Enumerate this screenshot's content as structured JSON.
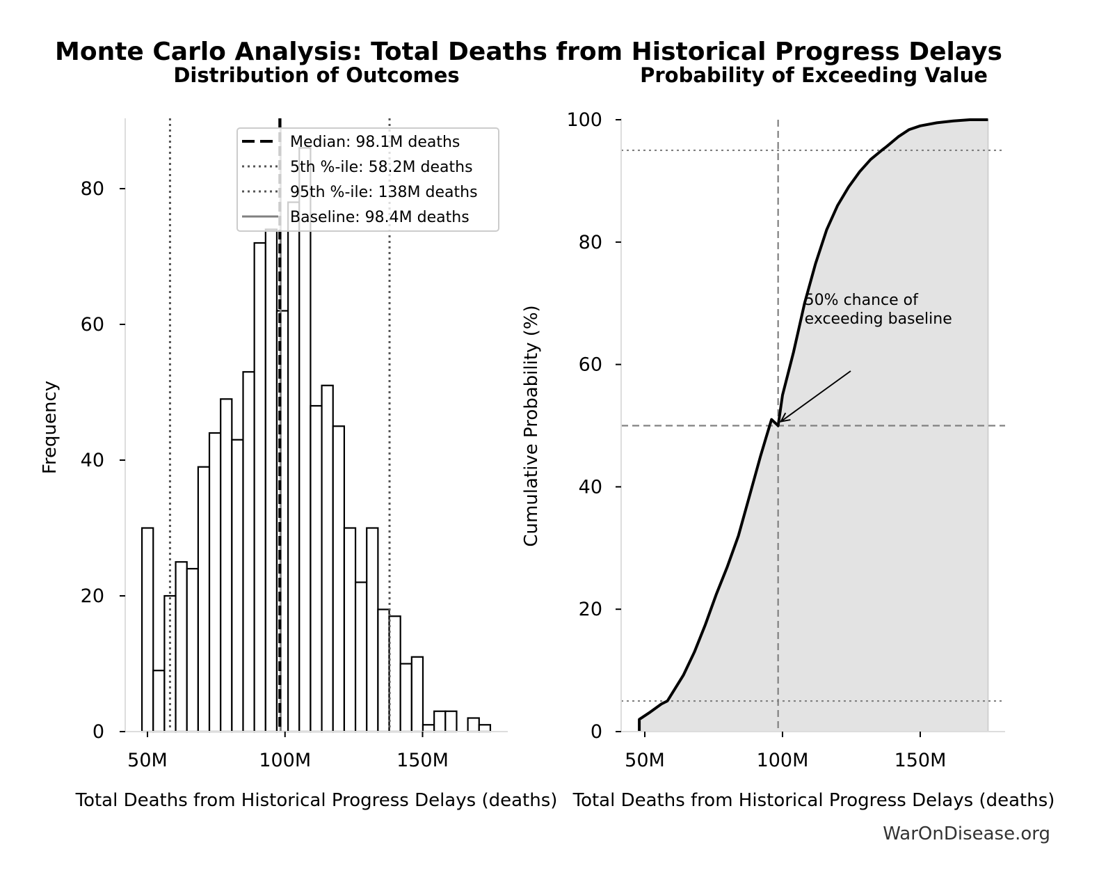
{
  "suptitle": "Monte Carlo Analysis: Total Deaths from Historical Progress Delays",
  "watermark": "WarOnDisease.org",
  "chart_data": [
    {
      "type": "bar",
      "subtype": "histogram",
      "title": "Distribution of Outcomes",
      "xlabel": "Total Deaths from Historical Progress Delays (deaths)",
      "ylabel": "Frequency",
      "xlim": [
        44,
        182
      ],
      "ylim": [
        0,
        90
      ],
      "x_unit": "M",
      "xticks": [
        50,
        100,
        150
      ],
      "xtick_labels": [
        "50M",
        "100M",
        "150M"
      ],
      "yticks": [
        0,
        20,
        40,
        60,
        80
      ],
      "ytick_labels": [
        "0",
        "20",
        "40",
        "60",
        "80"
      ],
      "bin_start": 48.0,
      "bin_width": 4.085,
      "counts": [
        30,
        9,
        20,
        25,
        24,
        39,
        44,
        49,
        43,
        53,
        72,
        74,
        62,
        78,
        86,
        48,
        51,
        45,
        30,
        22,
        30,
        18,
        17,
        10,
        11,
        1,
        3,
        3,
        0,
        2,
        1
      ],
      "vlines": [
        {
          "name": "median",
          "x": 98.1,
          "style": "dashed",
          "color": "#000000",
          "label": "Median: 98.1M deaths"
        },
        {
          "name": "p5",
          "x": 58.2,
          "style": "dotted",
          "color": "#555555",
          "label": "5th %-ile: 58.2M deaths"
        },
        {
          "name": "p95",
          "x": 138,
          "style": "dotted",
          "color": "#555555",
          "label": "95th %-ile: 138M deaths"
        },
        {
          "name": "baseline",
          "x": 98.4,
          "style": "solid",
          "color": "#808080",
          "label": "Baseline: 98.4M deaths"
        }
      ],
      "legend": "upper-right",
      "grid": false
    },
    {
      "type": "area",
      "subtype": "cdf",
      "title": "Probability of Exceeding Value",
      "xlabel": "Total Deaths from Historical Progress Delays (deaths)",
      "ylabel": "Cumulative Probability (%)",
      "xlim": [
        44,
        182
      ],
      "ylim": [
        0,
        100
      ],
      "x_unit": "M",
      "xticks": [
        50,
        100,
        150
      ],
      "xtick_labels": [
        "50M",
        "100M",
        "150M"
      ],
      "yticks": [
        0,
        20,
        40,
        60,
        80,
        100
      ],
      "ytick_labels": [
        "0",
        "20",
        "40",
        "60",
        "80",
        "100"
      ],
      "x": [
        48.0,
        48.0,
        52,
        56,
        58.2,
        60,
        64,
        68,
        72,
        76,
        80,
        84,
        88,
        92,
        94,
        96,
        98.4,
        100,
        104,
        108,
        112,
        116,
        120,
        124,
        128,
        132,
        136,
        138,
        142,
        146,
        150,
        156,
        162,
        168,
        174.6
      ],
      "y": [
        0,
        2,
        3.2,
        4.5,
        5,
        6.3,
        9.2,
        13,
        17.5,
        22.5,
        27,
        32,
        38.5,
        45,
        48,
        51,
        50,
        55,
        62,
        70,
        76.5,
        82,
        86,
        89,
        91.5,
        93.5,
        95,
        95.7,
        97.2,
        98.4,
        99,
        99.5,
        99.8,
        100,
        100
      ],
      "hlines": [
        {
          "y": 50,
          "style": "dashed",
          "color": "#808080"
        },
        {
          "y": 5,
          "style": "dotted",
          "color": "#808080"
        },
        {
          "y": 95,
          "style": "dotted",
          "color": "#808080"
        }
      ],
      "vlines": [
        {
          "x": 98.4,
          "style": "dashed",
          "color": "#808080"
        }
      ],
      "fill_color": "#e3e3e3",
      "annotation": {
        "text_lines": [
          "50% chance of",
          "exceeding baseline"
        ],
        "target": [
          98.4,
          50
        ],
        "text_at": [
          108,
          62
        ]
      },
      "grid": false
    }
  ]
}
